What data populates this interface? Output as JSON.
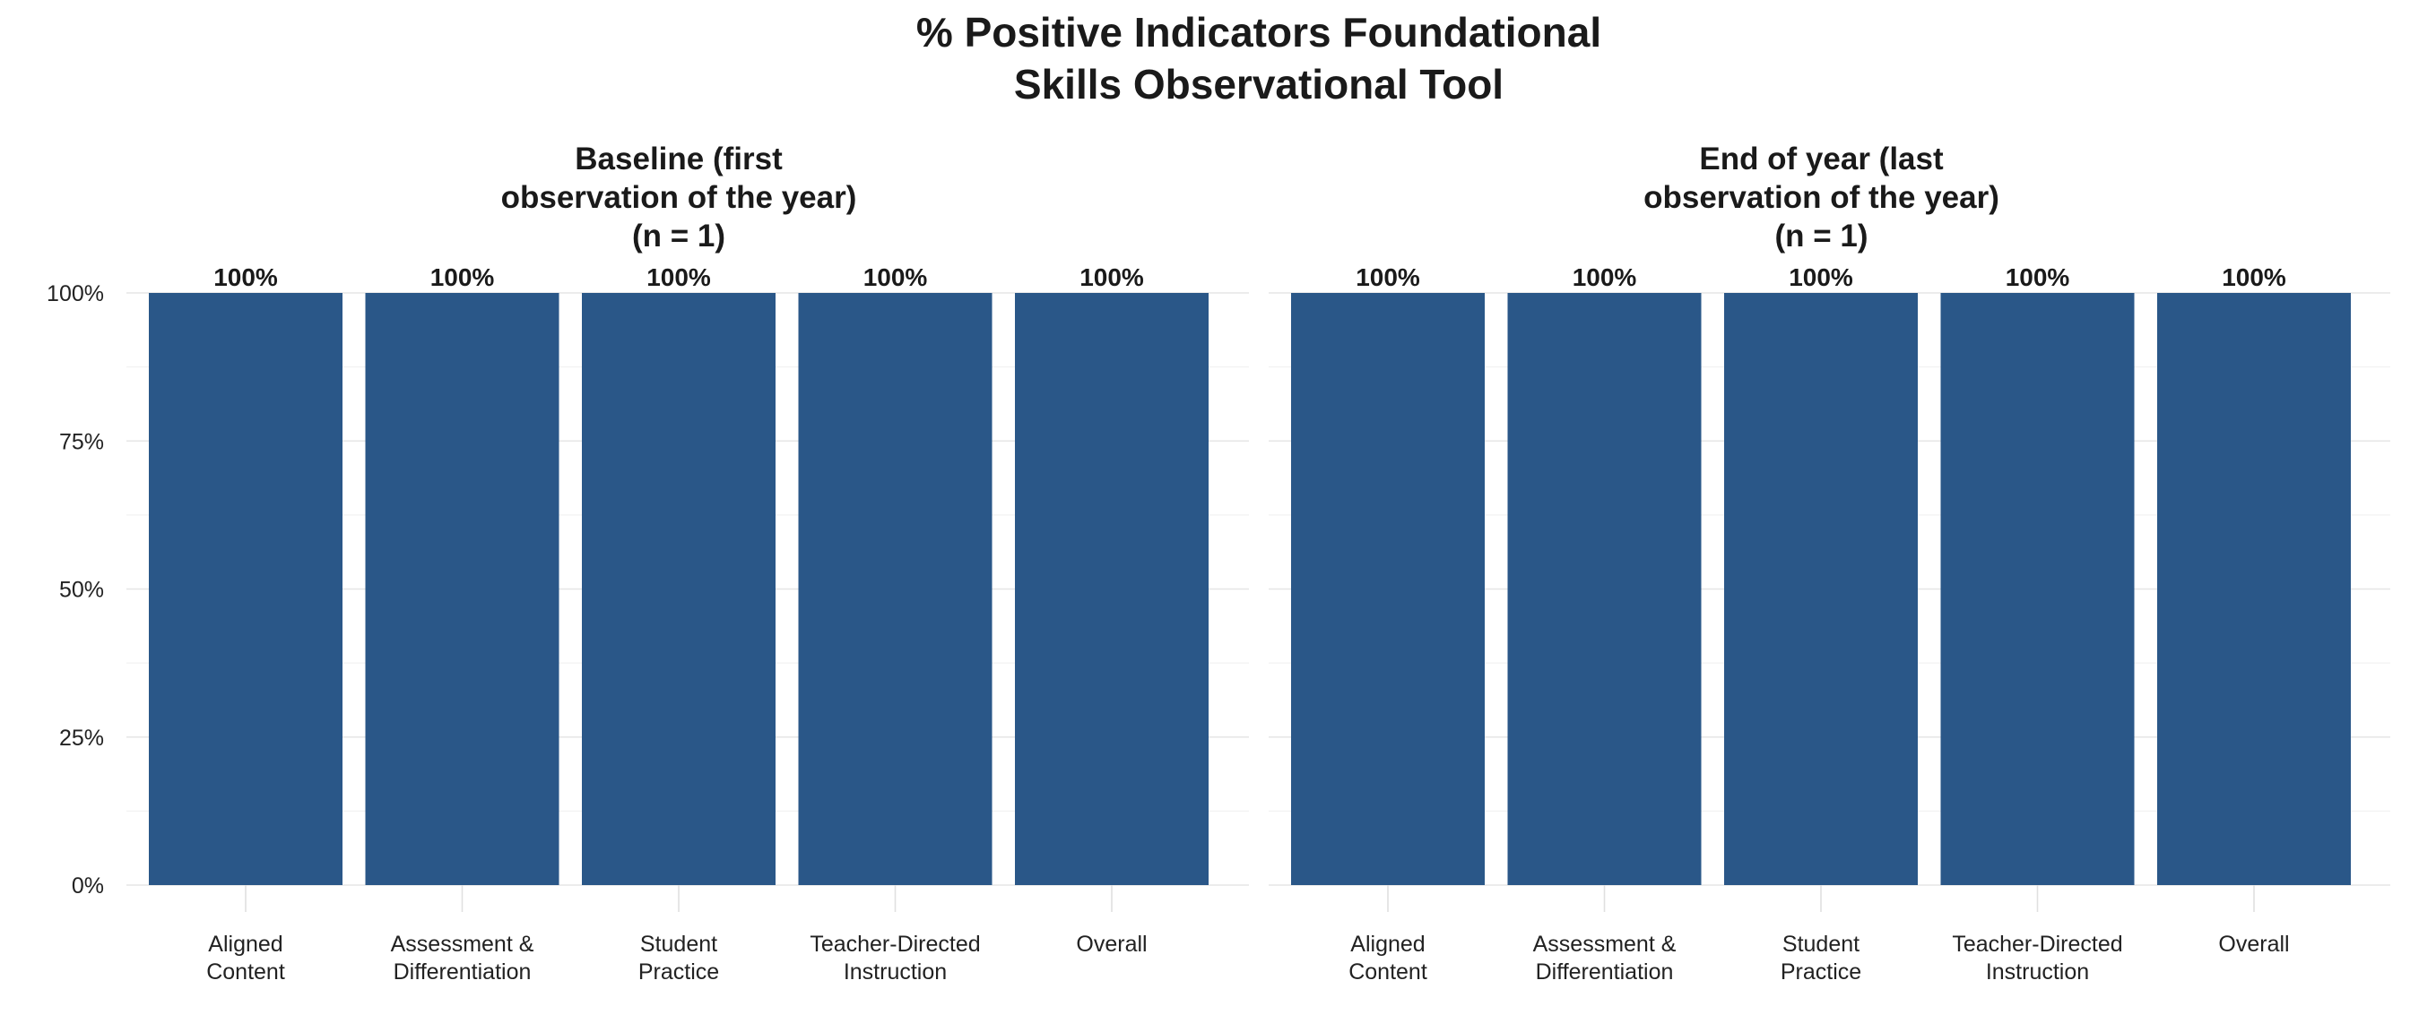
{
  "chart_data": {
    "type": "bar",
    "title": [
      "% Positive Indicators Foundational",
      "Skills Observational Tool"
    ],
    "ylim": [
      0,
      100
    ],
    "y_ticks": [
      "0%",
      "25%",
      "50%",
      "75%",
      "100%"
    ],
    "bar_color": "#2a5788",
    "grid": true,
    "categories": [
      [
        "Aligned",
        "Content"
      ],
      [
        "Assessment &",
        "Differentiation"
      ],
      [
        "Student",
        "Practice"
      ],
      [
        "Teacher-Directed",
        "Instruction"
      ],
      [
        "Overall"
      ]
    ],
    "panels": [
      {
        "title": [
          "Baseline (first",
          "observation of the year)",
          "(n = 1)"
        ],
        "values": [
          100,
          100,
          100,
          100,
          100
        ],
        "labels": [
          "100%",
          "100%",
          "100%",
          "100%",
          "100%"
        ]
      },
      {
        "title": [
          "End of year (last",
          "observation of the year)",
          "(n = 1)"
        ],
        "values": [
          100,
          100,
          100,
          100,
          100
        ],
        "labels": [
          "100%",
          "100%",
          "100%",
          "100%",
          "100%"
        ]
      }
    ]
  }
}
